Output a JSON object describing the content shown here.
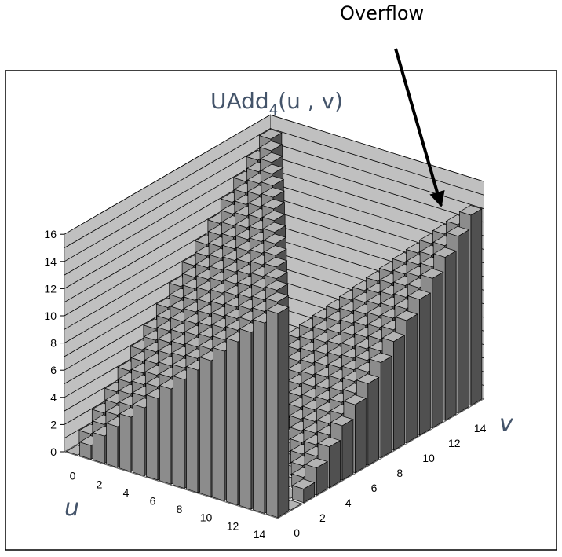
{
  "chart_data": {
    "type": "bar3d",
    "title": {
      "prefix": "UAdd",
      "subscript": "4",
      "args": "(u , v)"
    },
    "xlabel": "u",
    "ylabel": "v",
    "u_ticks": [
      "0",
      "2",
      "4",
      "6",
      "8",
      "10",
      "12",
      "14"
    ],
    "v_ticks": [
      "0",
      "2",
      "4",
      "6",
      "8",
      "10",
      "12",
      "14"
    ],
    "z_ticks": [
      "0",
      "2",
      "4",
      "6",
      "8",
      "10",
      "12",
      "14",
      "16"
    ],
    "zlim": [
      0,
      16
    ],
    "u_values": [
      0,
      1,
      2,
      3,
      4,
      5,
      6,
      7,
      8,
      9,
      10,
      11,
      12,
      13,
      14,
      15
    ],
    "v_values": [
      0,
      1,
      2,
      3,
      4,
      5,
      6,
      7,
      8,
      9,
      10,
      11,
      12,
      13,
      14,
      15
    ],
    "formula": "(u + v) mod 16",
    "values": [
      [
        0,
        1,
        2,
        3,
        4,
        5,
        6,
        7,
        8,
        9,
        10,
        11,
        12,
        13,
        14,
        15
      ],
      [
        1,
        2,
        3,
        4,
        5,
        6,
        7,
        8,
        9,
        10,
        11,
        12,
        13,
        14,
        15,
        0
      ],
      [
        2,
        3,
        4,
        5,
        6,
        7,
        8,
        9,
        10,
        11,
        12,
        13,
        14,
        15,
        0,
        1
      ],
      [
        3,
        4,
        5,
        6,
        7,
        8,
        9,
        10,
        11,
        12,
        13,
        14,
        15,
        0,
        1,
        2
      ],
      [
        4,
        5,
        6,
        7,
        8,
        9,
        10,
        11,
        12,
        13,
        14,
        15,
        0,
        1,
        2,
        3
      ],
      [
        5,
        6,
        7,
        8,
        9,
        10,
        11,
        12,
        13,
        14,
        15,
        0,
        1,
        2,
        3,
        4
      ],
      [
        6,
        7,
        8,
        9,
        10,
        11,
        12,
        13,
        14,
        15,
        0,
        1,
        2,
        3,
        4,
        5
      ],
      [
        7,
        8,
        9,
        10,
        11,
        12,
        13,
        14,
        15,
        0,
        1,
        2,
        3,
        4,
        5,
        6
      ],
      [
        8,
        9,
        10,
        11,
        12,
        13,
        14,
        15,
        0,
        1,
        2,
        3,
        4,
        5,
        6,
        7
      ],
      [
        9,
        10,
        11,
        12,
        13,
        14,
        15,
        0,
        1,
        2,
        3,
        4,
        5,
        6,
        7,
        8
      ],
      [
        10,
        11,
        12,
        13,
        14,
        15,
        0,
        1,
        2,
        3,
        4,
        5,
        6,
        7,
        8,
        9
      ],
      [
        11,
        12,
        13,
        14,
        15,
        0,
        1,
        2,
        3,
        4,
        5,
        6,
        7,
        8,
        9,
        10
      ],
      [
        12,
        13,
        14,
        15,
        0,
        1,
        2,
        3,
        4,
        5,
        6,
        7,
        8,
        9,
        10,
        11
      ],
      [
        13,
        14,
        15,
        0,
        1,
        2,
        3,
        4,
        5,
        6,
        7,
        8,
        9,
        10,
        11,
        12
      ],
      [
        14,
        15,
        0,
        1,
        2,
        3,
        4,
        5,
        6,
        7,
        8,
        9,
        10,
        11,
        12,
        13
      ],
      [
        15,
        0,
        1,
        2,
        3,
        4,
        5,
        6,
        7,
        8,
        9,
        10,
        11,
        12,
        13,
        14
      ]
    ],
    "annotation": "Overflow",
    "grid": true,
    "colors": {
      "front": "#8c8c8c",
      "side": "#505050",
      "top": "#b4b4b4",
      "wall": "#c0c0c0",
      "floor": "#e6e6e6",
      "title": "#44546a"
    }
  }
}
